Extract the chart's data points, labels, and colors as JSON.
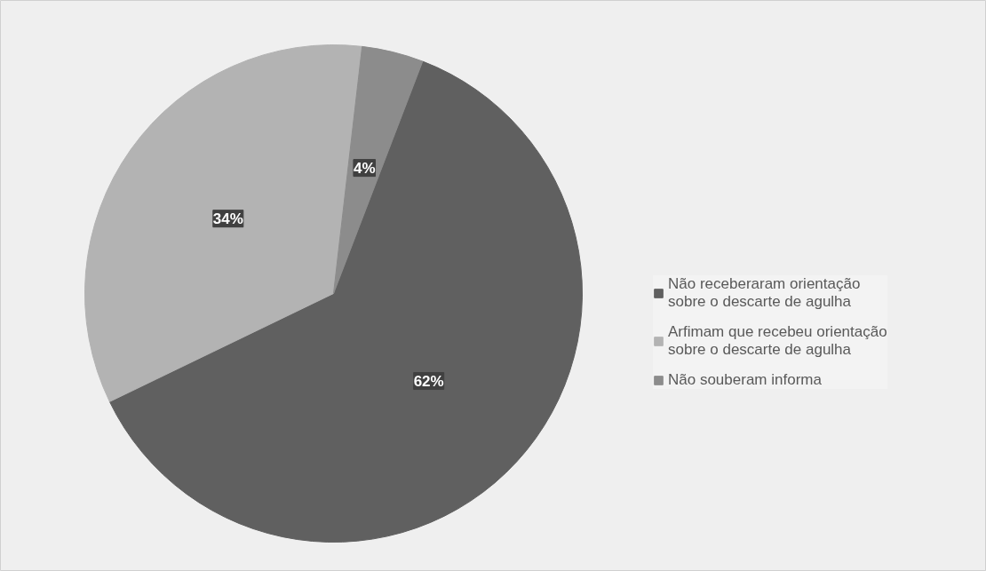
{
  "chart_data": {
    "type": "pie",
    "categories": [
      "Não receberaram orientação sobre o descarte de agulha",
      "Arfimam que recebeu orientação sobre o descarte de agulha",
      "Não souberam informa"
    ],
    "values": [
      62,
      34,
      4
    ],
    "colors": [
      "#606060",
      "#b3b3b3",
      "#8c8c8c"
    ],
    "value_labels": [
      "62%",
      "34%",
      "4%"
    ],
    "legend": "right"
  }
}
